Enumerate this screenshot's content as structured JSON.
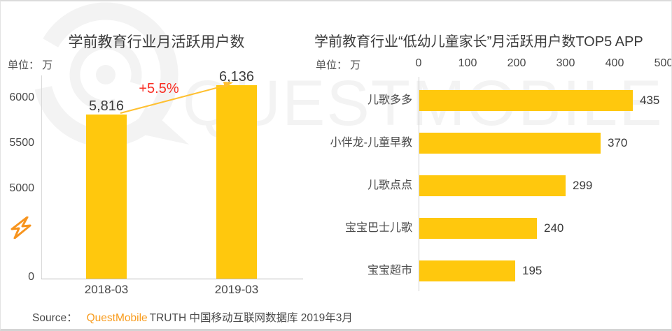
{
  "watermark": {
    "text": "QUESTMOBILE"
  },
  "chart_data": [
    {
      "type": "bar",
      "title": "学前教育行业月活跃用户数",
      "unit": "单位： 万",
      "categories": [
        "2018-03",
        "2019-03"
      ],
      "values": [
        5816,
        6136
      ],
      "value_labels": [
        "5,816",
        "6,136"
      ],
      "annotation": "+5.5%",
      "y_ticks": [
        6000,
        5500,
        5000,
        0
      ],
      "axis_break": true,
      "ylim_visible": [
        5000,
        6200
      ],
      "grid": false
    },
    {
      "type": "bar",
      "orientation": "horizontal",
      "title": "学前教育行业“低幼儿童家长”月活跃用户数TOP5 APP",
      "unit": "单位： 万",
      "categories": [
        "儿歌多多",
        "小伴龙-儿童早教",
        "儿歌点点",
        "宝宝巴士儿歌",
        "宝宝超市"
      ],
      "values": [
        435,
        370,
        299,
        240,
        195
      ],
      "x_ticks": [
        0,
        100,
        200,
        300,
        400,
        500
      ],
      "xlim": [
        0,
        500
      ],
      "grid": false
    }
  ],
  "source": {
    "prefix": "Source：",
    "brand": "QuestMobile",
    "suffix": "TRUTH 中国移动互联网数据库 2019年3月"
  },
  "colors": {
    "bar": "#FFC80D",
    "brand_orange": "#F89B1C",
    "growth_red": "#F92F25",
    "arrow_yellow": "#FFC030",
    "watermark_gray": "#F3F3F3",
    "break_icon_orange": "#F7941E"
  }
}
